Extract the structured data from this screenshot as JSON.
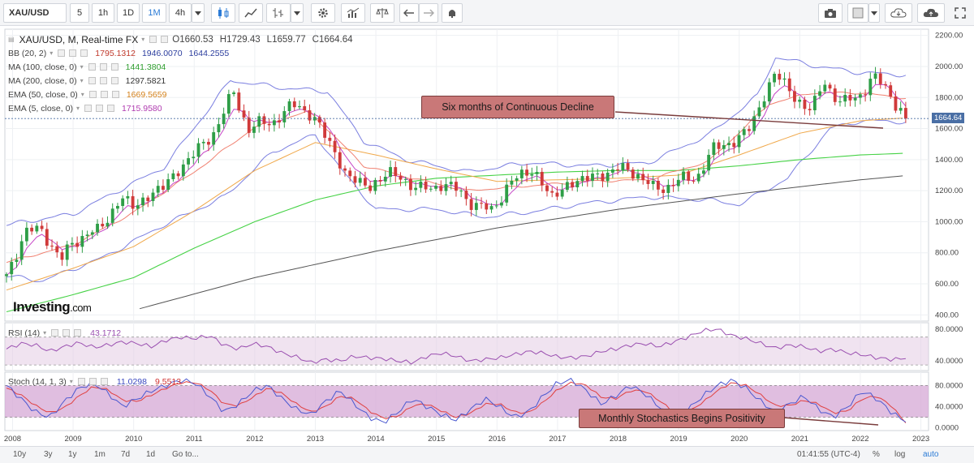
{
  "toolbar": {
    "symbol": "XAU/USD",
    "intervals": [
      "5",
      "1h",
      "1D",
      "1M",
      "4h"
    ],
    "active_interval": "1M"
  },
  "legend": {
    "title": "XAU/USD, M, Real-time FX",
    "ohlc": {
      "o": "O1660.53",
      "h": "H1729.43",
      "l": "L1659.77",
      "c": "C1664.64"
    },
    "indicators": [
      {
        "label": "BB (20, 2)",
        "values": [
          "1795.1312",
          "1946.0070",
          "1644.2555"
        ],
        "colors": [
          "#c0392b",
          "#2c3e9e",
          "#2c3e9e"
        ]
      },
      {
        "label": "MA (100, close, 0)",
        "values": [
          "1441.3804"
        ],
        "colors": [
          "#2e9e2e"
        ]
      },
      {
        "label": "MA (200, close, 0)",
        "values": [
          "1297.5821"
        ],
        "colors": [
          "#333333"
        ]
      },
      {
        "label": "EMA (50, close, 0)",
        "values": [
          "1669.5659"
        ],
        "colors": [
          "#d4821c"
        ]
      },
      {
        "label": "EMA (5, close, 0)",
        "values": [
          "1715.9580"
        ],
        "colors": [
          "#b03bb0"
        ]
      }
    ],
    "rsi": {
      "label": "RSI (14)",
      "value": "43.1712"
    },
    "stoch": {
      "label": "Stoch (14, 1, 3)",
      "values": [
        "11.0298",
        "9.5513"
      ]
    }
  },
  "branding": {
    "logo_main": "Investing",
    "logo_suffix": ".com"
  },
  "annotations": {
    "price": "Six months of Continuous Decline",
    "stoch": "Monthly Stochastics Begins Positivity"
  },
  "current_price_tag": "1664.64",
  "bottombar": {
    "ranges": [
      "10y",
      "3y",
      "1y",
      "1m",
      "7d",
      "1d",
      "Go to..."
    ],
    "clock": "01:41:55 (UTC-4)",
    "options": [
      "%",
      "log",
      "auto"
    ]
  },
  "colors": {
    "up": "#2e9e47",
    "down": "#d03a3a",
    "bb": "#7b7fe0",
    "ema5": "#c645c6",
    "ema50": "#f0a84a",
    "ema20mid": "#f08070",
    "ma100": "#46d246",
    "ma200": "#555555",
    "rsi": "#9a4fb0",
    "stoch_k": "#4a58d0",
    "stoch_d": "#e04040",
    "band": "#e4cce4",
    "stoch_band": "#d6a8d6"
  },
  "chart_data": [
    {
      "type": "candlestick",
      "title": "XAU/USD, M, Real-time FX",
      "x_ticks": [
        "2008",
        "2009",
        "2010",
        "2011",
        "2012",
        "2013",
        "2014",
        "2015",
        "2016",
        "2017",
        "2018",
        "2019",
        "2020",
        "2021",
        "2022",
        "2023"
      ],
      "y_ticks": [
        "400.00",
        "600.00",
        "800.00",
        "1000.00",
        "1200.00",
        "1400.00",
        "1600.00",
        "1800.00",
        "2000.00",
        "2200.00"
      ],
      "ylim": [
        360,
        2240
      ],
      "xlim": [
        2007.9,
        2023.1
      ],
      "anchors_close": [
        [
          2007.9,
          650
        ],
        [
          2008.2,
          930
        ],
        [
          2008.5,
          950
        ],
        [
          2008.8,
          740
        ],
        [
          2009.0,
          880
        ],
        [
          2009.4,
          940
        ],
        [
          2009.8,
          1150
        ],
        [
          2010.0,
          1100
        ],
        [
          2010.5,
          1230
        ],
        [
          2010.9,
          1400
        ],
        [
          2011.3,
          1560
        ],
        [
          2011.65,
          1830
        ],
        [
          2011.9,
          1600
        ],
        [
          2012.3,
          1650
        ],
        [
          2012.7,
          1760
        ],
        [
          2012.95,
          1680
        ],
        [
          2013.3,
          1470
        ],
        [
          2013.5,
          1300
        ],
        [
          2013.9,
          1220
        ],
        [
          2014.2,
          1320
        ],
        [
          2014.7,
          1220
        ],
        [
          2014.9,
          1200
        ],
        [
          2015.1,
          1260
        ],
        [
          2015.5,
          1150
        ],
        [
          2015.9,
          1060
        ],
        [
          2016.2,
          1250
        ],
        [
          2016.6,
          1340
        ],
        [
          2016.9,
          1150
        ],
        [
          2017.2,
          1250
        ],
        [
          2017.7,
          1300
        ],
        [
          2018.0,
          1340
        ],
        [
          2018.3,
          1320
        ],
        [
          2018.6,
          1200
        ],
        [
          2018.9,
          1250
        ],
        [
          2019.3,
          1290
        ],
        [
          2019.6,
          1480
        ],
        [
          2019.95,
          1520
        ],
        [
          2020.2,
          1620
        ],
        [
          2020.6,
          1970
        ],
        [
          2020.9,
          1800
        ],
        [
          2021.2,
          1720
        ],
        [
          2021.4,
          1900
        ],
        [
          2021.7,
          1760
        ],
        [
          2021.95,
          1800
        ],
        [
          2022.2,
          1930
        ],
        [
          2022.45,
          1850
        ],
        [
          2022.75,
          1664
        ]
      ],
      "bollinger_upper": [
        [
          2007.9,
          980
        ],
        [
          2009.0,
          1050
        ],
        [
          2010.5,
          1350
        ],
        [
          2011.6,
          1910
        ],
        [
          2012.5,
          1860
        ],
        [
          2013.2,
          1840
        ],
        [
          2013.8,
          1520
        ],
        [
          2014.5,
          1400
        ],
        [
          2015.5,
          1320
        ],
        [
          2016.5,
          1380
        ],
        [
          2017.5,
          1360
        ],
        [
          2018.5,
          1380
        ],
        [
          2019.5,
          1560
        ],
        [
          2020.3,
          1810
        ],
        [
          2020.6,
          2060
        ],
        [
          2021.3,
          2000
        ],
        [
          2022.0,
          1960
        ],
        [
          2022.75,
          1946
        ]
      ],
      "bollinger_lower": [
        [
          2007.9,
          650
        ],
        [
          2008.5,
          620
        ],
        [
          2009.5,
          770
        ],
        [
          2010.5,
          980
        ],
        [
          2011.5,
          1160
        ],
        [
          2012.3,
          1450
        ],
        [
          2013.0,
          1560
        ],
        [
          2013.5,
          1300
        ],
        [
          2014.0,
          1080
        ],
        [
          2015.0,
          1080
        ],
        [
          2015.8,
          1030
        ],
        [
          2016.5,
          1060
        ],
        [
          2017.5,
          1120
        ],
        [
          2018.5,
          1160
        ],
        [
          2019.5,
          1140
        ],
        [
          2020.0,
          1110
        ],
        [
          2020.8,
          1280
        ],
        [
          2021.5,
          1600
        ],
        [
          2022.0,
          1650
        ],
        [
          2022.75,
          1644
        ]
      ],
      "ma100": [
        [
          2007.9,
          420
        ],
        [
          2009.0,
          530
        ],
        [
          2010.0,
          640
        ],
        [
          2011.0,
          830
        ],
        [
          2012.0,
          1000
        ],
        [
          2013.0,
          1140
        ],
        [
          2014.0,
          1230
        ],
        [
          2015.0,
          1280
        ],
        [
          2016.0,
          1300
        ],
        [
          2017.0,
          1320
        ],
        [
          2018.0,
          1330
        ],
        [
          2019.0,
          1330
        ],
        [
          2020.0,
          1360
        ],
        [
          2021.0,
          1400
        ],
        [
          2022.0,
          1430
        ],
        [
          2022.75,
          1441
        ]
      ],
      "ma200": [
        [
          2010.1,
          440
        ],
        [
          2012.0,
          640
        ],
        [
          2014.0,
          810
        ],
        [
          2016.0,
          960
        ],
        [
          2018.0,
          1080
        ],
        [
          2020.0,
          1180
        ],
        [
          2022.0,
          1270
        ],
        [
          2022.75,
          1297
        ]
      ],
      "ema50": [
        [
          2007.9,
          560
        ],
        [
          2009.0,
          700
        ],
        [
          2010.0,
          840
        ],
        [
          2011.0,
          1070
        ],
        [
          2012.0,
          1330
        ],
        [
          2013.0,
          1510
        ],
        [
          2014.0,
          1430
        ],
        [
          2015.0,
          1340
        ],
        [
          2016.0,
          1260
        ],
        [
          2017.0,
          1270
        ],
        [
          2018.0,
          1280
        ],
        [
          2019.0,
          1300
        ],
        [
          2020.0,
          1430
        ],
        [
          2021.0,
          1570
        ],
        [
          2022.0,
          1650
        ],
        [
          2022.75,
          1669
        ]
      ],
      "ema20": [
        [
          2007.9,
          740
        ],
        [
          2009.0,
          850
        ],
        [
          2010.0,
          1060
        ],
        [
          2011.0,
          1320
        ],
        [
          2012.0,
          1610
        ],
        [
          2012.9,
          1710
        ],
        [
          2013.8,
          1360
        ],
        [
          2014.5,
          1290
        ],
        [
          2015.5,
          1200
        ],
        [
          2016.5,
          1230
        ],
        [
          2017.5,
          1260
        ],
        [
          2018.5,
          1270
        ],
        [
          2019.5,
          1390
        ],
        [
          2020.5,
          1760
        ],
        [
          2021.2,
          1830
        ],
        [
          2022.0,
          1830
        ],
        [
          2022.75,
          1795
        ]
      ]
    },
    {
      "type": "line",
      "title": "RSI (14)",
      "y_ticks": [
        "40.0000",
        "80.0000"
      ],
      "ylim": [
        28,
        88
      ],
      "band": [
        35,
        70
      ],
      "series": [
        {
          "name": "RSI (14)",
          "values": [
            55,
            62,
            60,
            52,
            58,
            63,
            57,
            60,
            64,
            62,
            58,
            66,
            70,
            68,
            72,
            60,
            55,
            62,
            58,
            50,
            45,
            38,
            42,
            40,
            46,
            44,
            43,
            40,
            38,
            46,
            50,
            46,
            40,
            42,
            44,
            48,
            52,
            50,
            45,
            44,
            46,
            52,
            55,
            60,
            62,
            58,
            64,
            70,
            78,
            80,
            72,
            68,
            62,
            56,
            60,
            58,
            52,
            55,
            50,
            48,
            44,
            42,
            43
          ]
        }
      ]
    },
    {
      "type": "line",
      "title": "Stoch (14, 1, 3)",
      "y_ticks": [
        "0.0000",
        "40.0000",
        "80.0000"
      ],
      "ylim": [
        -5,
        105
      ],
      "band": [
        20,
        80
      ],
      "series": [
        {
          "name": "%K",
          "values": [
            80,
            55,
            30,
            20,
            50,
            75,
            85,
            65,
            40,
            55,
            70,
            80,
            90,
            85,
            60,
            30,
            45,
            70,
            80,
            55,
            35,
            25,
            50,
            70,
            45,
            20,
            10,
            30,
            55,
            40,
            25,
            15,
            35,
            55,
            40,
            20,
            30,
            60,
            85,
            90,
            70,
            45,
            60,
            80,
            65,
            40,
            20,
            35,
            60,
            80,
            90,
            75,
            50,
            30,
            45,
            60,
            35,
            20,
            40,
            70,
            55,
            30,
            11
          ]
        },
        {
          "name": "%D",
          "values": [
            75,
            62,
            42,
            28,
            38,
            60,
            78,
            72,
            52,
            50,
            62,
            75,
            85,
            86,
            72,
            45,
            42,
            58,
            75,
            65,
            45,
            30,
            40,
            60,
            55,
            32,
            18,
            22,
            42,
            45,
            32,
            20,
            28,
            45,
            45,
            30,
            28,
            48,
            72,
            86,
            80,
            58,
            55,
            70,
            70,
            52,
            30,
            30,
            48,
            70,
            85,
            80,
            62,
            42,
            42,
            52,
            45,
            28,
            32,
            55,
            60,
            42,
            9.5
          ]
        }
      ]
    }
  ]
}
